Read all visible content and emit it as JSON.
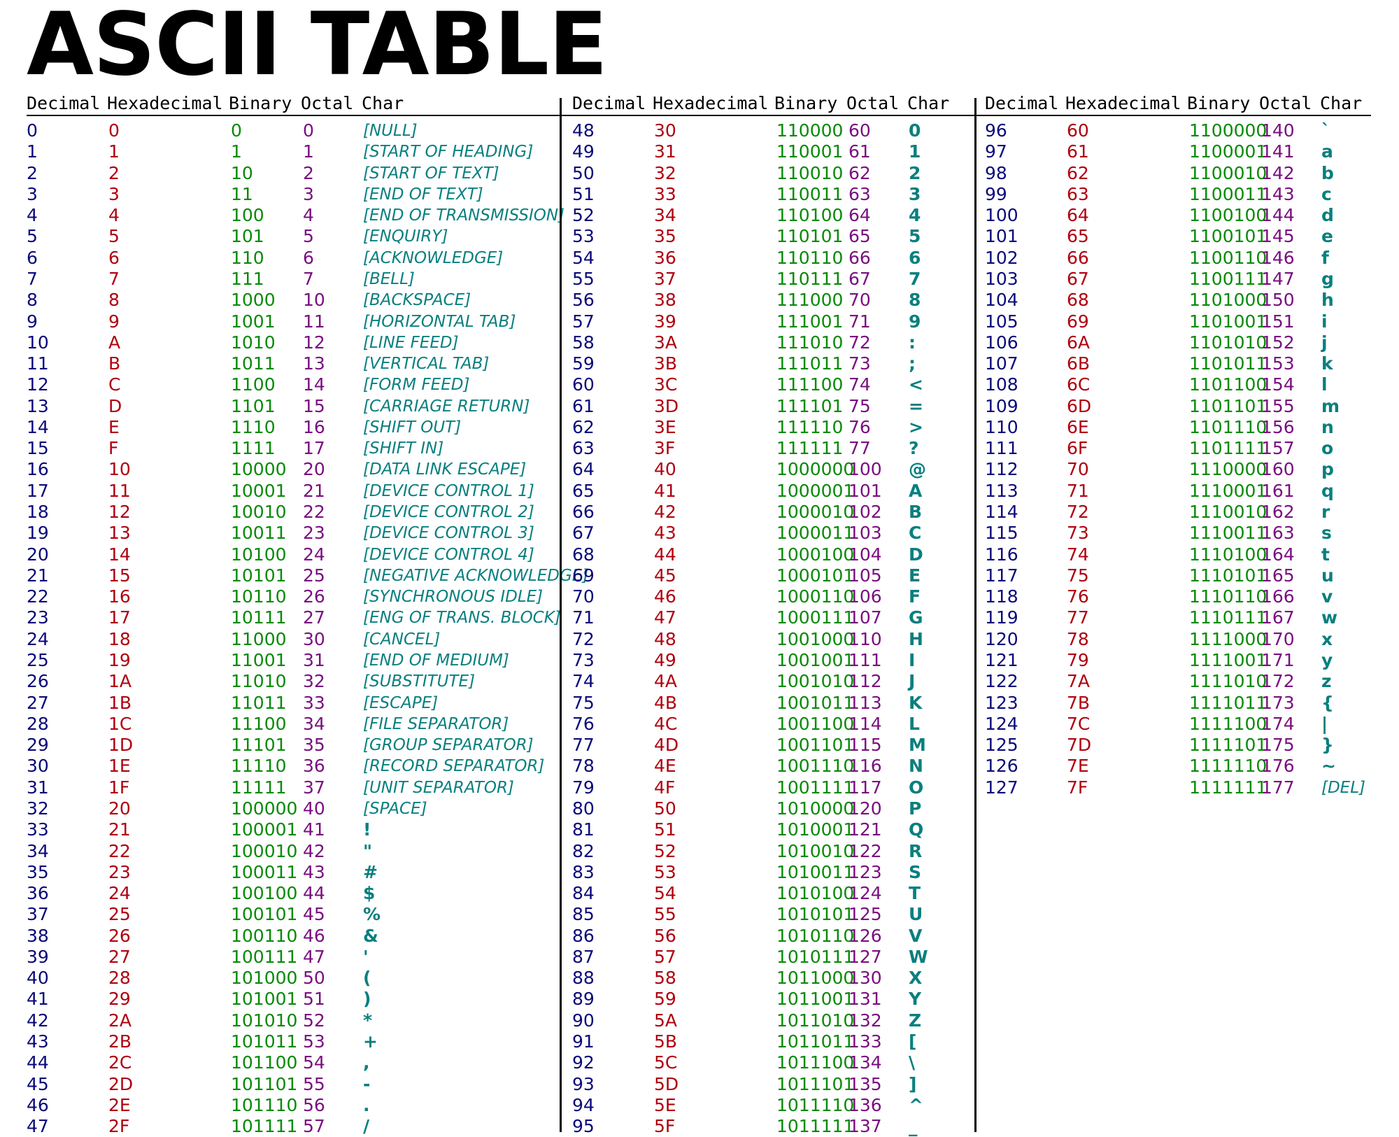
{
  "title": "ASCII TABLE",
  "header_labels": {
    "decimal": "Decimal",
    "hexadecimal": "Hexadecimal",
    "binary": "Binary",
    "octal": "Octal",
    "char": "Char"
  },
  "colors": {
    "decimal": "#0a0a7a",
    "hexadecimal": "#b0000f",
    "binary": "#088a08",
    "octal": "#7a0f80",
    "char": "#0a7f7f"
  },
  "rows": [
    {
      "dec": "0",
      "hex": "0",
      "bin": "0",
      "oct": "0",
      "char": "[NULL]"
    },
    {
      "dec": "1",
      "hex": "1",
      "bin": "1",
      "oct": "1",
      "char": "[START OF HEADING]"
    },
    {
      "dec": "2",
      "hex": "2",
      "bin": "10",
      "oct": "2",
      "char": "[START OF TEXT]"
    },
    {
      "dec": "3",
      "hex": "3",
      "bin": "11",
      "oct": "3",
      "char": "[END OF TEXT]"
    },
    {
      "dec": "4",
      "hex": "4",
      "bin": "100",
      "oct": "4",
      "char": "[END OF TRANSMISSION]"
    },
    {
      "dec": "5",
      "hex": "5",
      "bin": "101",
      "oct": "5",
      "char": "[ENQUIRY]"
    },
    {
      "dec": "6",
      "hex": "6",
      "bin": "110",
      "oct": "6",
      "char": "[ACKNOWLEDGE]"
    },
    {
      "dec": "7",
      "hex": "7",
      "bin": "111",
      "oct": "7",
      "char": "[BELL]"
    },
    {
      "dec": "8",
      "hex": "8",
      "bin": "1000",
      "oct": "10",
      "char": "[BACKSPACE]"
    },
    {
      "dec": "9",
      "hex": "9",
      "bin": "1001",
      "oct": "11",
      "char": "[HORIZONTAL TAB]"
    },
    {
      "dec": "10",
      "hex": "A",
      "bin": "1010",
      "oct": "12",
      "char": "[LINE FEED]"
    },
    {
      "dec": "11",
      "hex": "B",
      "bin": "1011",
      "oct": "13",
      "char": "[VERTICAL TAB]"
    },
    {
      "dec": "12",
      "hex": "C",
      "bin": "1100",
      "oct": "14",
      "char": "[FORM FEED]"
    },
    {
      "dec": "13",
      "hex": "D",
      "bin": "1101",
      "oct": "15",
      "char": "[CARRIAGE RETURN]"
    },
    {
      "dec": "14",
      "hex": "E",
      "bin": "1110",
      "oct": "16",
      "char": "[SHIFT OUT]"
    },
    {
      "dec": "15",
      "hex": "F",
      "bin": "1111",
      "oct": "17",
      "char": "[SHIFT IN]"
    },
    {
      "dec": "16",
      "hex": "10",
      "bin": "10000",
      "oct": "20",
      "char": "[DATA LINK ESCAPE]"
    },
    {
      "dec": "17",
      "hex": "11",
      "bin": "10001",
      "oct": "21",
      "char": "[DEVICE CONTROL 1]"
    },
    {
      "dec": "18",
      "hex": "12",
      "bin": "10010",
      "oct": "22",
      "char": "[DEVICE CONTROL 2]"
    },
    {
      "dec": "19",
      "hex": "13",
      "bin": "10011",
      "oct": "23",
      "char": "[DEVICE CONTROL 3]"
    },
    {
      "dec": "20",
      "hex": "14",
      "bin": "10100",
      "oct": "24",
      "char": "[DEVICE CONTROL 4]"
    },
    {
      "dec": "21",
      "hex": "15",
      "bin": "10101",
      "oct": "25",
      "char": "[NEGATIVE ACKNOWLEDGE]"
    },
    {
      "dec": "22",
      "hex": "16",
      "bin": "10110",
      "oct": "26",
      "char": "[SYNCHRONOUS IDLE]"
    },
    {
      "dec": "23",
      "hex": "17",
      "bin": "10111",
      "oct": "27",
      "char": "[ENG OF TRANS. BLOCK]"
    },
    {
      "dec": "24",
      "hex": "18",
      "bin": "11000",
      "oct": "30",
      "char": "[CANCEL]"
    },
    {
      "dec": "25",
      "hex": "19",
      "bin": "11001",
      "oct": "31",
      "char": "[END OF MEDIUM]"
    },
    {
      "dec": "26",
      "hex": "1A",
      "bin": "11010",
      "oct": "32",
      "char": "[SUBSTITUTE]"
    },
    {
      "dec": "27",
      "hex": "1B",
      "bin": "11011",
      "oct": "33",
      "char": "[ESCAPE]"
    },
    {
      "dec": "28",
      "hex": "1C",
      "bin": "11100",
      "oct": "34",
      "char": "[FILE SEPARATOR]"
    },
    {
      "dec": "29",
      "hex": "1D",
      "bin": "11101",
      "oct": "35",
      "char": "[GROUP SEPARATOR]"
    },
    {
      "dec": "30",
      "hex": "1E",
      "bin": "11110",
      "oct": "36",
      "char": "[RECORD SEPARATOR]"
    },
    {
      "dec": "31",
      "hex": "1F",
      "bin": "11111",
      "oct": "37",
      "char": "[UNIT SEPARATOR]"
    },
    {
      "dec": "32",
      "hex": "20",
      "bin": "100000",
      "oct": "40",
      "char": "[SPACE]"
    },
    {
      "dec": "33",
      "hex": "21",
      "bin": "100001",
      "oct": "41",
      "char": "!"
    },
    {
      "dec": "34",
      "hex": "22",
      "bin": "100010",
      "oct": "42",
      "char": "\""
    },
    {
      "dec": "35",
      "hex": "23",
      "bin": "100011",
      "oct": "43",
      "char": "#"
    },
    {
      "dec": "36",
      "hex": "24",
      "bin": "100100",
      "oct": "44",
      "char": "$"
    },
    {
      "dec": "37",
      "hex": "25",
      "bin": "100101",
      "oct": "45",
      "char": "%"
    },
    {
      "dec": "38",
      "hex": "26",
      "bin": "100110",
      "oct": "46",
      "char": "&"
    },
    {
      "dec": "39",
      "hex": "27",
      "bin": "100111",
      "oct": "47",
      "char": "'"
    },
    {
      "dec": "40",
      "hex": "28",
      "bin": "101000",
      "oct": "50",
      "char": "("
    },
    {
      "dec": "41",
      "hex": "29",
      "bin": "101001",
      "oct": "51",
      "char": ")"
    },
    {
      "dec": "42",
      "hex": "2A",
      "bin": "101010",
      "oct": "52",
      "char": "*"
    },
    {
      "dec": "43",
      "hex": "2B",
      "bin": "101011",
      "oct": "53",
      "char": "+"
    },
    {
      "dec": "44",
      "hex": "2C",
      "bin": "101100",
      "oct": "54",
      "char": ","
    },
    {
      "dec": "45",
      "hex": "2D",
      "bin": "101101",
      "oct": "55",
      "char": "-"
    },
    {
      "dec": "46",
      "hex": "2E",
      "bin": "101110",
      "oct": "56",
      "char": "."
    },
    {
      "dec": "47",
      "hex": "2F",
      "bin": "101111",
      "oct": "57",
      "char": "/"
    },
    {
      "dec": "48",
      "hex": "30",
      "bin": "110000",
      "oct": "60",
      "char": "0"
    },
    {
      "dec": "49",
      "hex": "31",
      "bin": "110001",
      "oct": "61",
      "char": "1"
    },
    {
      "dec": "50",
      "hex": "32",
      "bin": "110010",
      "oct": "62",
      "char": "2"
    },
    {
      "dec": "51",
      "hex": "33",
      "bin": "110011",
      "oct": "63",
      "char": "3"
    },
    {
      "dec": "52",
      "hex": "34",
      "bin": "110100",
      "oct": "64",
      "char": "4"
    },
    {
      "dec": "53",
      "hex": "35",
      "bin": "110101",
      "oct": "65",
      "char": "5"
    },
    {
      "dec": "54",
      "hex": "36",
      "bin": "110110",
      "oct": "66",
      "char": "6"
    },
    {
      "dec": "55",
      "hex": "37",
      "bin": "110111",
      "oct": "67",
      "char": "7"
    },
    {
      "dec": "56",
      "hex": "38",
      "bin": "111000",
      "oct": "70",
      "char": "8"
    },
    {
      "dec": "57",
      "hex": "39",
      "bin": "111001",
      "oct": "71",
      "char": "9"
    },
    {
      "dec": "58",
      "hex": "3A",
      "bin": "111010",
      "oct": "72",
      "char": ":"
    },
    {
      "dec": "59",
      "hex": "3B",
      "bin": "111011",
      "oct": "73",
      "char": ";"
    },
    {
      "dec": "60",
      "hex": "3C",
      "bin": "111100",
      "oct": "74",
      "char": "<"
    },
    {
      "dec": "61",
      "hex": "3D",
      "bin": "111101",
      "oct": "75",
      "char": "="
    },
    {
      "dec": "62",
      "hex": "3E",
      "bin": "111110",
      "oct": "76",
      "char": ">"
    },
    {
      "dec": "63",
      "hex": "3F",
      "bin": "111111",
      "oct": "77",
      "char": "?"
    },
    {
      "dec": "64",
      "hex": "40",
      "bin": "1000000",
      "oct": "100",
      "char": "@"
    },
    {
      "dec": "65",
      "hex": "41",
      "bin": "1000001",
      "oct": "101",
      "char": "A"
    },
    {
      "dec": "66",
      "hex": "42",
      "bin": "1000010",
      "oct": "102",
      "char": "B"
    },
    {
      "dec": "67",
      "hex": "43",
      "bin": "1000011",
      "oct": "103",
      "char": "C"
    },
    {
      "dec": "68",
      "hex": "44",
      "bin": "1000100",
      "oct": "104",
      "char": "D"
    },
    {
      "dec": "69",
      "hex": "45",
      "bin": "1000101",
      "oct": "105",
      "char": "E"
    },
    {
      "dec": "70",
      "hex": "46",
      "bin": "1000110",
      "oct": "106",
      "char": "F"
    },
    {
      "dec": "71",
      "hex": "47",
      "bin": "1000111",
      "oct": "107",
      "char": "G"
    },
    {
      "dec": "72",
      "hex": "48",
      "bin": "1001000",
      "oct": "110",
      "char": "H"
    },
    {
      "dec": "73",
      "hex": "49",
      "bin": "1001001",
      "oct": "111",
      "char": "I"
    },
    {
      "dec": "74",
      "hex": "4A",
      "bin": "1001010",
      "oct": "112",
      "char": "J"
    },
    {
      "dec": "75",
      "hex": "4B",
      "bin": "1001011",
      "oct": "113",
      "char": "K"
    },
    {
      "dec": "76",
      "hex": "4C",
      "bin": "1001100",
      "oct": "114",
      "char": "L"
    },
    {
      "dec": "77",
      "hex": "4D",
      "bin": "1001101",
      "oct": "115",
      "char": "M"
    },
    {
      "dec": "78",
      "hex": "4E",
      "bin": "1001110",
      "oct": "116",
      "char": "N"
    },
    {
      "dec": "79",
      "hex": "4F",
      "bin": "1001111",
      "oct": "117",
      "char": "O"
    },
    {
      "dec": "80",
      "hex": "50",
      "bin": "1010000",
      "oct": "120",
      "char": "P"
    },
    {
      "dec": "81",
      "hex": "51",
      "bin": "1010001",
      "oct": "121",
      "char": "Q"
    },
    {
      "dec": "82",
      "hex": "52",
      "bin": "1010010",
      "oct": "122",
      "char": "R"
    },
    {
      "dec": "83",
      "hex": "53",
      "bin": "1010011",
      "oct": "123",
      "char": "S"
    },
    {
      "dec": "84",
      "hex": "54",
      "bin": "1010100",
      "oct": "124",
      "char": "T"
    },
    {
      "dec": "85",
      "hex": "55",
      "bin": "1010101",
      "oct": "125",
      "char": "U"
    },
    {
      "dec": "86",
      "hex": "56",
      "bin": "1010110",
      "oct": "126",
      "char": "V"
    },
    {
      "dec": "87",
      "hex": "57",
      "bin": "1010111",
      "oct": "127",
      "char": "W"
    },
    {
      "dec": "88",
      "hex": "58",
      "bin": "1011000",
      "oct": "130",
      "char": "X"
    },
    {
      "dec": "89",
      "hex": "59",
      "bin": "1011001",
      "oct": "131",
      "char": "Y"
    },
    {
      "dec": "90",
      "hex": "5A",
      "bin": "1011010",
      "oct": "132",
      "char": "Z"
    },
    {
      "dec": "91",
      "hex": "5B",
      "bin": "1011011",
      "oct": "133",
      "char": "["
    },
    {
      "dec": "92",
      "hex": "5C",
      "bin": "1011100",
      "oct": "134",
      "char": "\\"
    },
    {
      "dec": "93",
      "hex": "5D",
      "bin": "1011101",
      "oct": "135",
      "char": "]"
    },
    {
      "dec": "94",
      "hex": "5E",
      "bin": "1011110",
      "oct": "136",
      "char": "^"
    },
    {
      "dec": "95",
      "hex": "5F",
      "bin": "1011111",
      "oct": "137",
      "char": "_"
    },
    {
      "dec": "96",
      "hex": "60",
      "bin": "1100000",
      "oct": "140",
      "char": "`"
    },
    {
      "dec": "97",
      "hex": "61",
      "bin": "1100001",
      "oct": "141",
      "char": "a"
    },
    {
      "dec": "98",
      "hex": "62",
      "bin": "1100010",
      "oct": "142",
      "char": "b"
    },
    {
      "dec": "99",
      "hex": "63",
      "bin": "1100011",
      "oct": "143",
      "char": "c"
    },
    {
      "dec": "100",
      "hex": "64",
      "bin": "1100100",
      "oct": "144",
      "char": "d"
    },
    {
      "dec": "101",
      "hex": "65",
      "bin": "1100101",
      "oct": "145",
      "char": "e"
    },
    {
      "dec": "102",
      "hex": "66",
      "bin": "1100110",
      "oct": "146",
      "char": "f"
    },
    {
      "dec": "103",
      "hex": "67",
      "bin": "1100111",
      "oct": "147",
      "char": "g"
    },
    {
      "dec": "104",
      "hex": "68",
      "bin": "1101000",
      "oct": "150",
      "char": "h"
    },
    {
      "dec": "105",
      "hex": "69",
      "bin": "1101001",
      "oct": "151",
      "char": "i"
    },
    {
      "dec": "106",
      "hex": "6A",
      "bin": "1101010",
      "oct": "152",
      "char": "j"
    },
    {
      "dec": "107",
      "hex": "6B",
      "bin": "1101011",
      "oct": "153",
      "char": "k"
    },
    {
      "dec": "108",
      "hex": "6C",
      "bin": "1101100",
      "oct": "154",
      "char": "l"
    },
    {
      "dec": "109",
      "hex": "6D",
      "bin": "1101101",
      "oct": "155",
      "char": "m"
    },
    {
      "dec": "110",
      "hex": "6E",
      "bin": "1101110",
      "oct": "156",
      "char": "n"
    },
    {
      "dec": "111",
      "hex": "6F",
      "bin": "1101111",
      "oct": "157",
      "char": "o"
    },
    {
      "dec": "112",
      "hex": "70",
      "bin": "1110000",
      "oct": "160",
      "char": "p"
    },
    {
      "dec": "113",
      "hex": "71",
      "bin": "1110001",
      "oct": "161",
      "char": "q"
    },
    {
      "dec": "114",
      "hex": "72",
      "bin": "1110010",
      "oct": "162",
      "char": "r"
    },
    {
      "dec": "115",
      "hex": "73",
      "bin": "1110011",
      "oct": "163",
      "char": "s"
    },
    {
      "dec": "116",
      "hex": "74",
      "bin": "1110100",
      "oct": "164",
      "char": "t"
    },
    {
      "dec": "117",
      "hex": "75",
      "bin": "1110101",
      "oct": "165",
      "char": "u"
    },
    {
      "dec": "118",
      "hex": "76",
      "bin": "1110110",
      "oct": "166",
      "char": "v"
    },
    {
      "dec": "119",
      "hex": "77",
      "bin": "1110111",
      "oct": "167",
      "char": "w"
    },
    {
      "dec": "120",
      "hex": "78",
      "bin": "1111000",
      "oct": "170",
      "char": "x"
    },
    {
      "dec": "121",
      "hex": "79",
      "bin": "1111001",
      "oct": "171",
      "char": "y"
    },
    {
      "dec": "122",
      "hex": "7A",
      "bin": "1111010",
      "oct": "172",
      "char": "z"
    },
    {
      "dec": "123",
      "hex": "7B",
      "bin": "1111011",
      "oct": "173",
      "char": "{"
    },
    {
      "dec": "124",
      "hex": "7C",
      "bin": "1111100",
      "oct": "174",
      "char": "|"
    },
    {
      "dec": "125",
      "hex": "7D",
      "bin": "1111101",
      "oct": "175",
      "char": "}"
    },
    {
      "dec": "126",
      "hex": "7E",
      "bin": "1111110",
      "oct": "176",
      "char": "~"
    },
    {
      "dec": "127",
      "hex": "7F",
      "bin": "1111111",
      "oct": "177",
      "char": "[DEL]"
    }
  ]
}
